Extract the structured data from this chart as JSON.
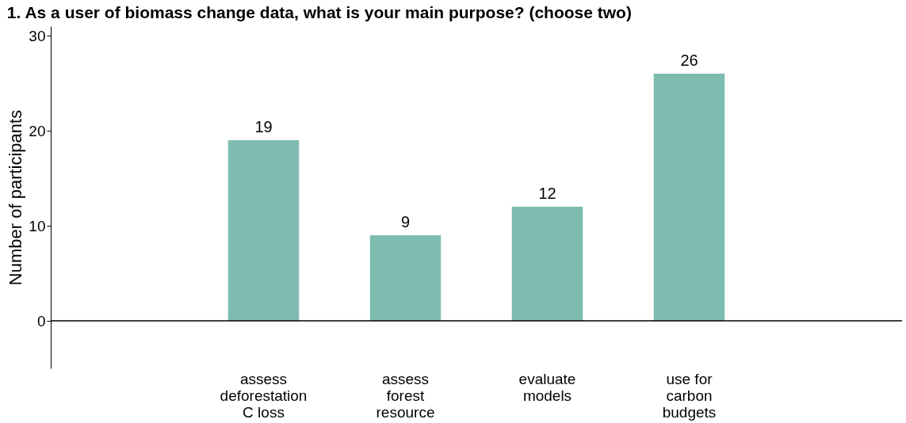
{
  "chart_data": {
    "type": "bar",
    "title": "1. As a user of biomass change data, what is your main purpose? (choose two)",
    "ylabel": "Number of participants",
    "categories": [
      null,
      "assess\ndeforestation\nC loss",
      "assess\nforest\nresource",
      "evaluate\nmodels",
      "use for\ncarbon\nbudgets",
      null
    ],
    "values": [
      null,
      19,
      9,
      12,
      26,
      null
    ],
    "color": "#7fbcb0",
    "ylim": [
      -5,
      31
    ],
    "yticks": [
      0,
      10,
      20,
      30
    ],
    "grid": false,
    "data_labels": true,
    "ref_lines": [
      {
        "axis": "y",
        "value": 0,
        "color": "#000000"
      }
    ]
  }
}
